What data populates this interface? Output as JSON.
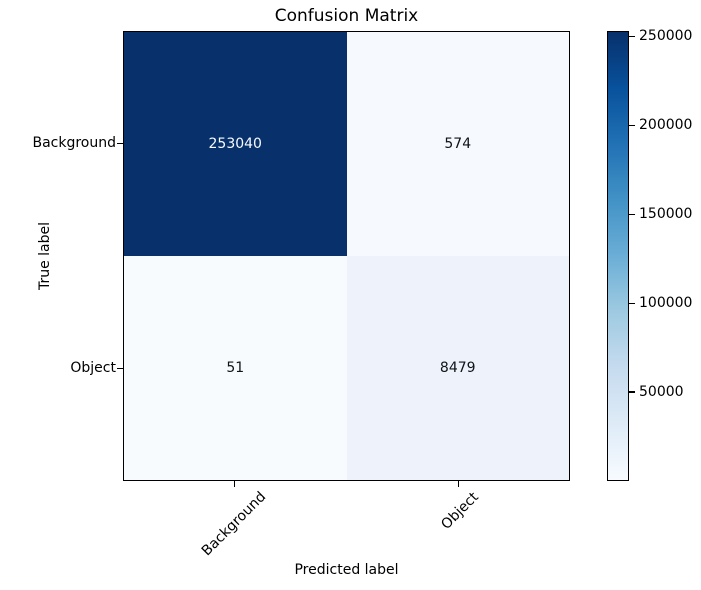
{
  "chart_data": {
    "type": "heatmap",
    "title": "Confusion Matrix",
    "xlabel": "Predicted label",
    "ylabel": "True label",
    "x_ticklabels": [
      "Background",
      "Object"
    ],
    "y_ticklabels": [
      "Background",
      "Object"
    ],
    "matrix": [
      [
        253040,
        574
      ],
      [
        51,
        8479
      ]
    ],
    "value_range": [
      51,
      253040
    ],
    "cells": [
      {
        "true_label": "Background",
        "predicted_label": "Background",
        "value": "253040",
        "bg": "#08306b",
        "fg": "#f7fbff"
      },
      {
        "true_label": "Background",
        "predicted_label": "Object",
        "value": "574",
        "bg": "#f6f9fe",
        "fg": "#101418"
      },
      {
        "true_label": "Object",
        "predicted_label": "Background",
        "value": "51",
        "bg": "#f7fbfe",
        "fg": "#101418"
      },
      {
        "true_label": "Object",
        "predicted_label": "Object",
        "value": "8479",
        "bg": "#eef3fb",
        "fg": "#101418"
      }
    ],
    "colorbar": {
      "colormap": "Blues",
      "tick_values": [
        250000,
        200000,
        150000,
        100000,
        50000
      ],
      "tick_labels": [
        "250000",
        "200000",
        "150000",
        "100000",
        "50000"
      ],
      "gradient_top_to_bottom": [
        "#08306b",
        "#08519c",
        "#2171b5",
        "#4292c6",
        "#6baed6",
        "#9ecae1",
        "#c6dbef",
        "#deebf7",
        "#f7fbff"
      ]
    },
    "legend_position": "right-colorbar",
    "grid": false
  }
}
